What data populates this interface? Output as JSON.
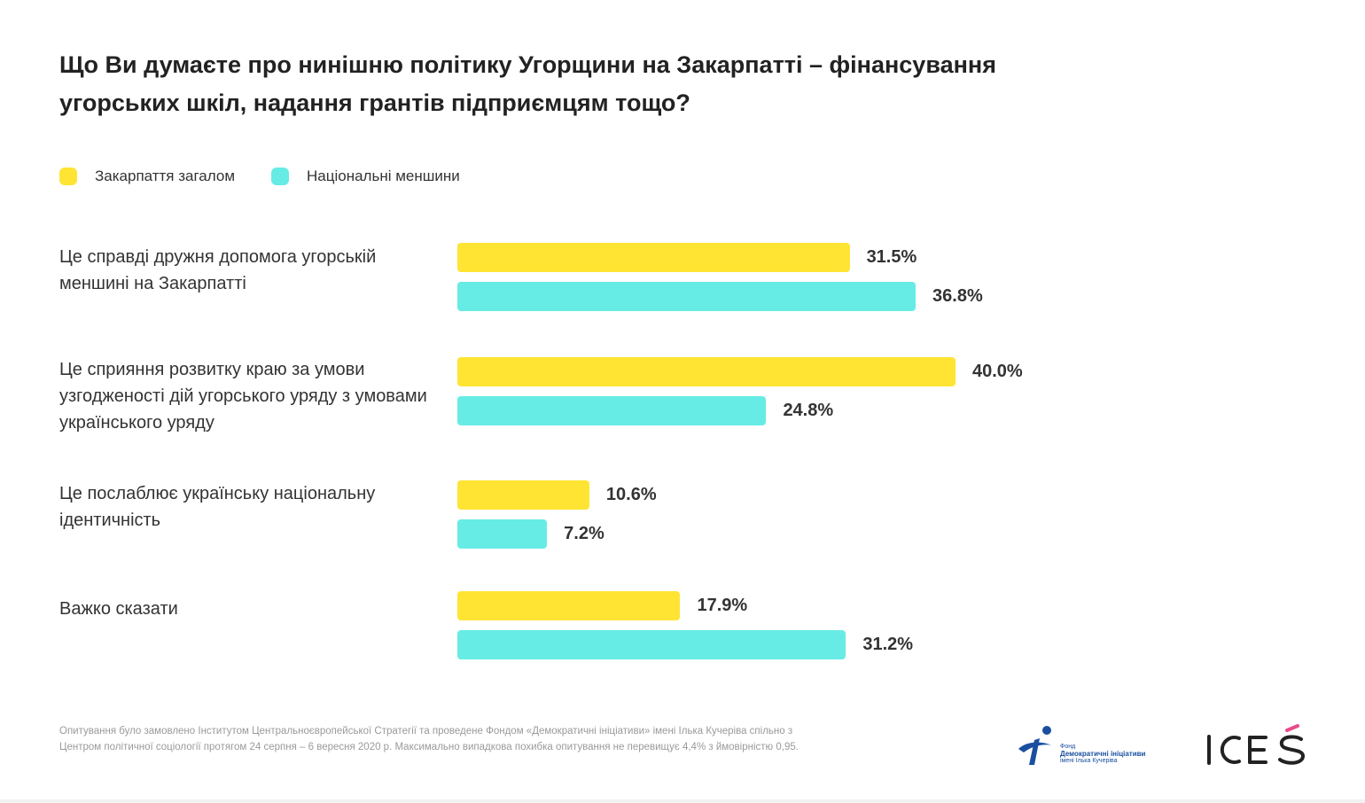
{
  "title": "Що Ви думаєте про нинішню політику Угорщини на Закарпатті – фінансування угорських шкіл, надання грантів підприємцям тощо?",
  "colors": {
    "series_1": "#FFE433",
    "series_2": "#66ECE5",
    "logo_blue": "#1A4FA0",
    "logo_pink": "#E94B8A"
  },
  "chart_data": {
    "type": "bar",
    "orientation": "horizontal",
    "title": "Що Ви думаєте про нинішню політику Угорщини на Закарпатті – фінансування угорських шкіл, надання грантів підприємцям тощо?",
    "legend_position": "top-left",
    "grid": false,
    "xlim": [
      0,
      100
    ],
    "categories": [
      "Це справді дружня допомога угорській меншині на Закарпатті",
      "Це сприяння розвитку краю за умови узгодженості дій угорського уряду з умовами українського уряду",
      "Це послаблює українську національну ідентичність",
      "Важко сказати"
    ],
    "series": [
      {
        "name": "Закарпаття загалом",
        "values": [
          31.5,
          40.0,
          10.6,
          17.9
        ],
        "labels": [
          "31.5%",
          "40.0%",
          "10.6%",
          "17.9%"
        ]
      },
      {
        "name": "Національні меншини",
        "values": [
          36.8,
          24.8,
          7.2,
          31.2
        ],
        "labels": [
          "36.8%",
          "24.8%",
          "7.2%",
          "31.2%"
        ]
      }
    ]
  },
  "footnote": "Опитування було замовлено Інститутом Центральноєвропейської Стратегії та проведене Фондом «Демократичні ініціативи» імені Ілька Кучеріва спільно з Центром політичної соціології протягом 24 серпня – 6 вересня 2020 р. Максимально випадкова похибка опитування не перевищує 4,4% з ймовірністю 0,95.",
  "logos": {
    "fond": {
      "line1": "Фонд",
      "line2": "Демократичні ініціативи",
      "line3": "імені Ілька Кучеріва",
      "icon": "fond-logo-icon"
    },
    "ices": {
      "text": "ICES"
    }
  }
}
